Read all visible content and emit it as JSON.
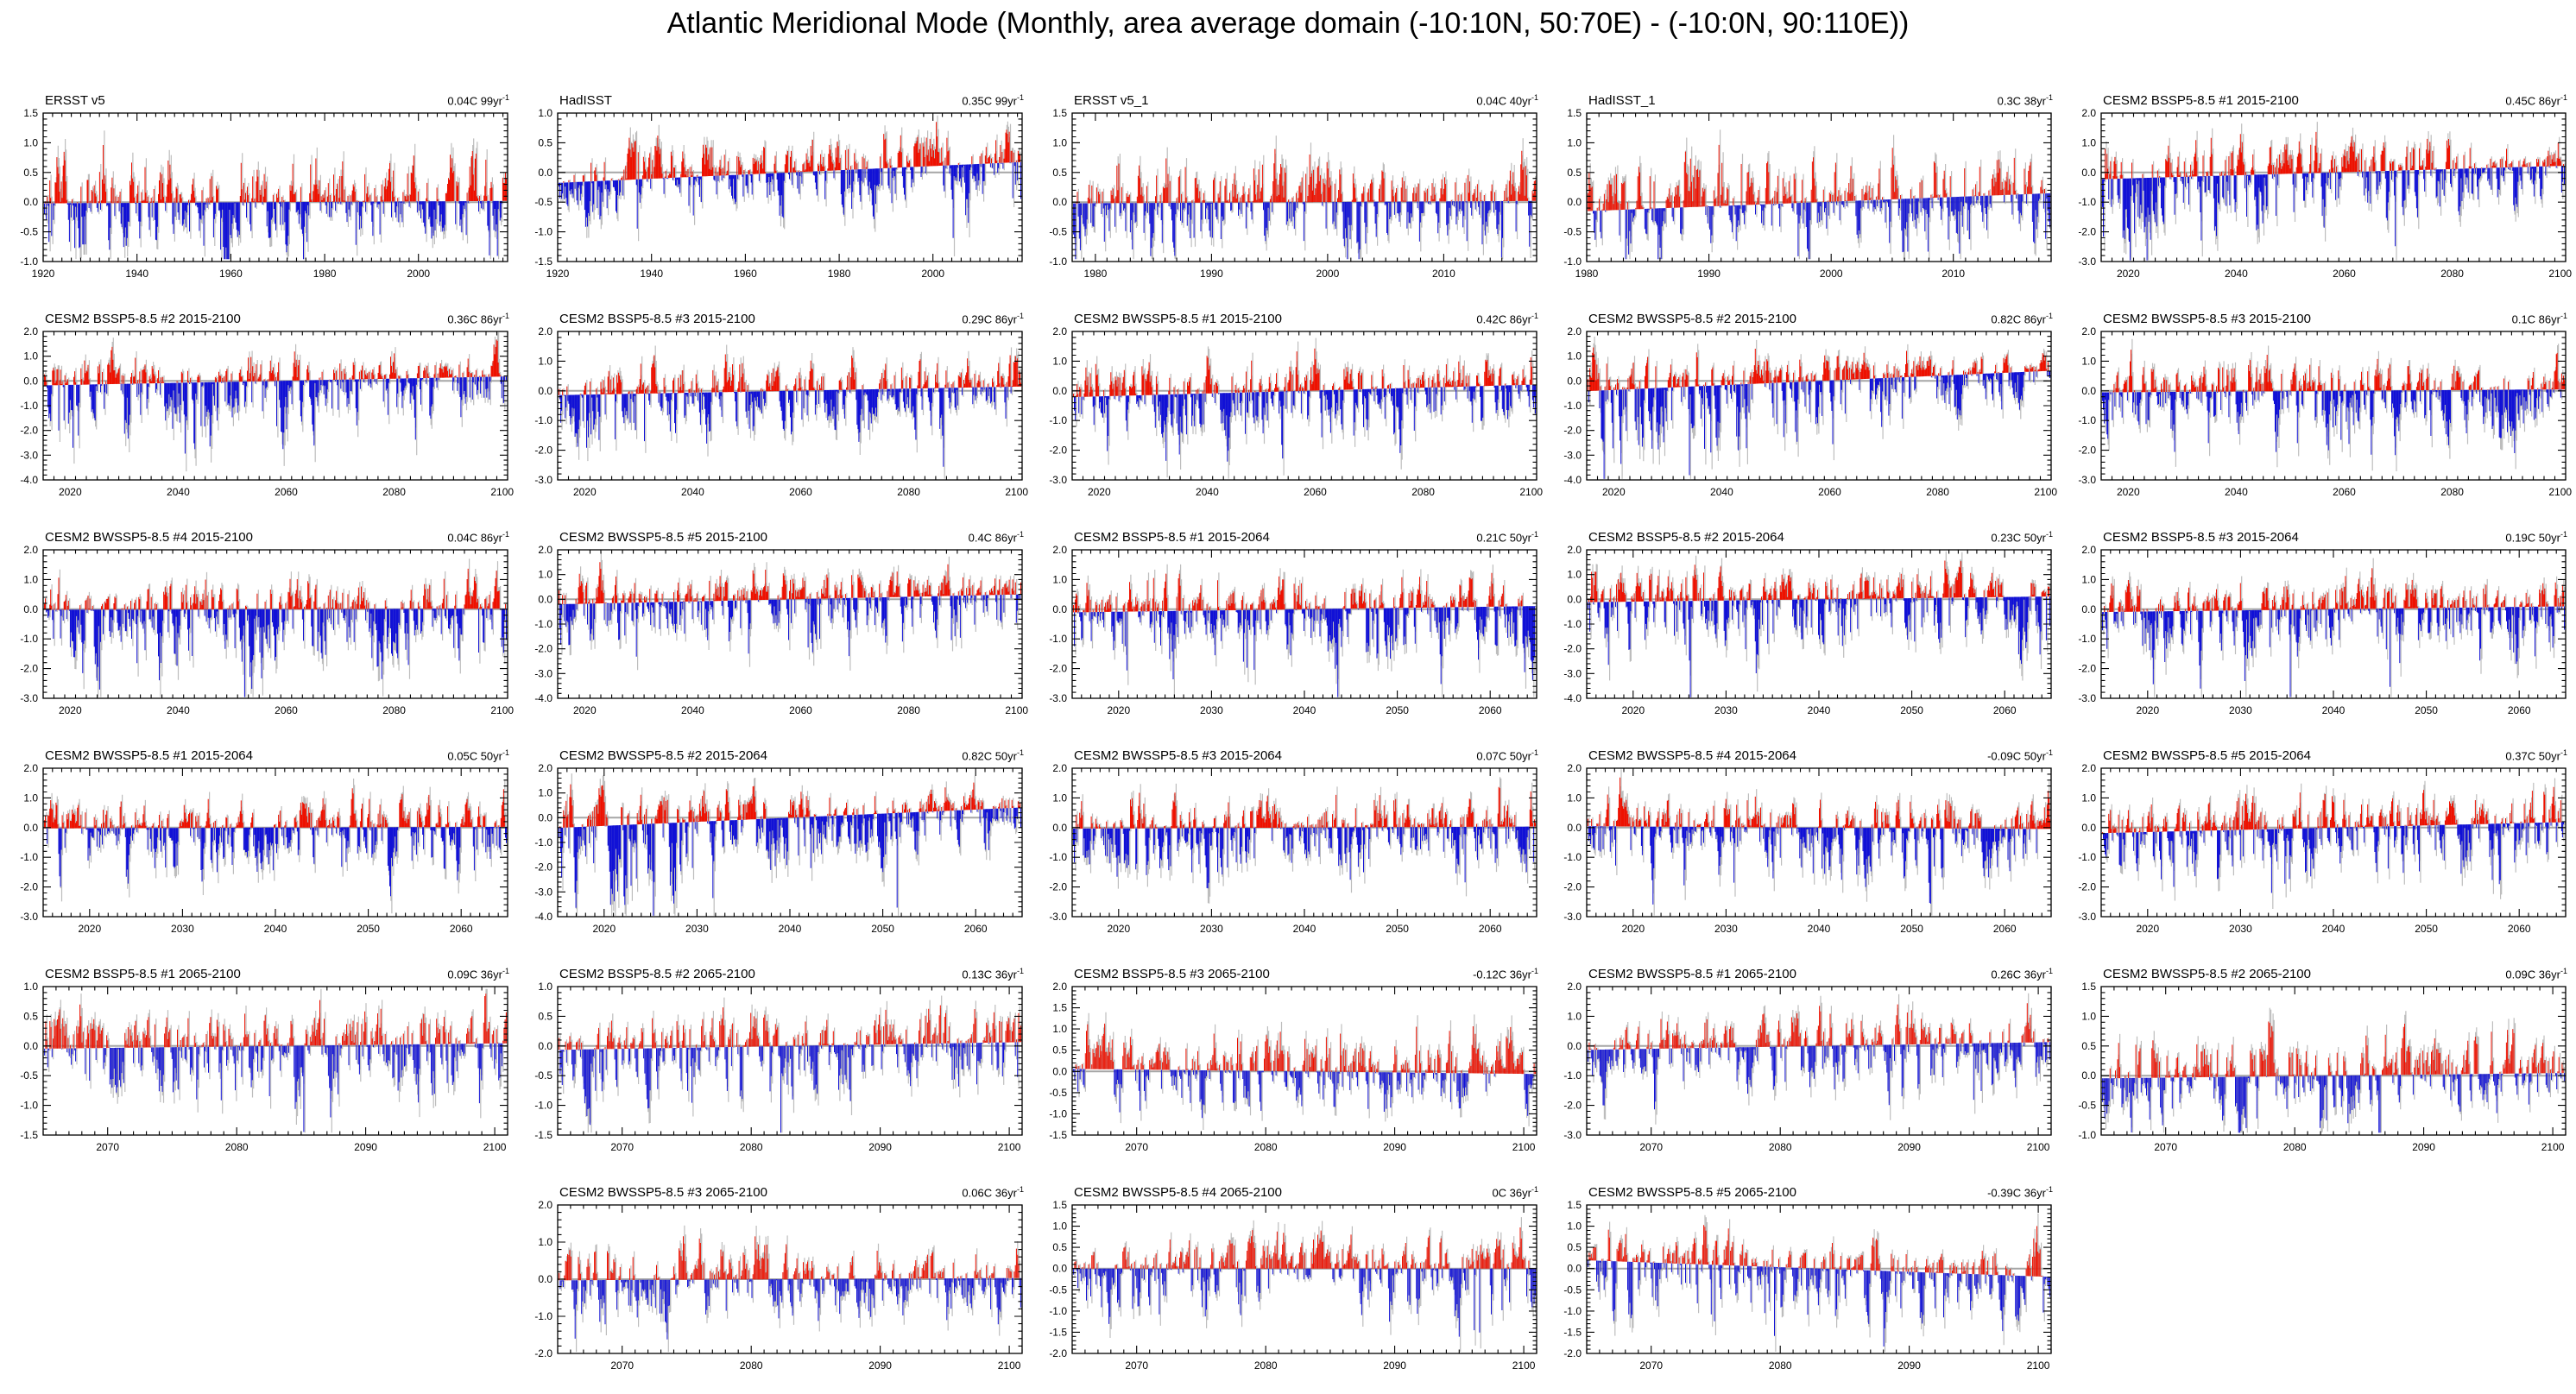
{
  "title": "Atlantic Meridional Mode (Monthly, area average domain (-10:10N, 50:70E) - (-10:0N, 90:110E))",
  "colors": {
    "positive_bar": "#ee1100",
    "negative_bar": "#1111d6",
    "shadow_bar": "#bdbdbd",
    "zero_line": "#a6a6a6",
    "frame": "#000000",
    "text": "#000000"
  },
  "chart_data": {
    "type": "bar",
    "description": "Grid of monthly anomaly bar charts; red bars above trend baseline, blue below, gray shadow series behind; zero reference line in gray.",
    "legend_position": "none",
    "grid": false,
    "panels": [
      {
        "title": "ERSST v5",
        "trend": "0.04C 99yr",
        "exp": "-1",
        "x0": 1920,
        "x1": 2019,
        "xticks": [
          1920,
          1940,
          1960,
          1980,
          2000
        ],
        "xminor": 2,
        "ytop": 1.5,
        "ybot": -1.0,
        "ystep": 0.5,
        "trend_c": 0.04,
        "render": {
          "seed": 3,
          "amp": 0.33,
          "neg": 1.15,
          "taper": [
            1,
            1
          ]
        }
      },
      {
        "title": "HadISST",
        "trend": "0.35C 99yr",
        "exp": "-1",
        "x0": 1920,
        "x1": 2019,
        "xticks": [
          1920,
          1940,
          1960,
          1980,
          2000
        ],
        "xminor": 2,
        "ytop": 1.0,
        "ybot": -1.5,
        "ystep": 0.5,
        "trend_c": 0.35,
        "render": {
          "seed": 17,
          "amp": 0.28,
          "neg": 1.35,
          "taper": [
            1,
            1
          ]
        }
      },
      {
        "title": "ERSST v5_1",
        "trend": "0.04C 40yr",
        "exp": "-1",
        "x0": 1978,
        "x1": 2018,
        "xticks": [
          1980,
          1990,
          2000,
          2010
        ],
        "xminor": 1,
        "ytop": 1.5,
        "ybot": -1.0,
        "ystep": 0.5,
        "trend_c": 0.04,
        "render": {
          "seed": 29,
          "amp": 0.36,
          "neg": 1.1,
          "taper": [
            1,
            1
          ]
        }
      },
      {
        "title": "HadISST_1",
        "trend": "0.3C 38yr",
        "exp": "-1",
        "x0": 1980,
        "x1": 2018,
        "xticks": [
          1980,
          1990,
          2000,
          2010
        ],
        "xminor": 1,
        "ytop": 1.5,
        "ybot": -1.0,
        "ystep": 0.5,
        "trend_c": 0.3,
        "render": {
          "seed": 41,
          "amp": 0.38,
          "neg": 1.0,
          "taper": [
            1,
            1
          ]
        }
      },
      {
        "title": "CESM2 BSSP5-8.5 #1 2015-2100",
        "trend": "0.45C 86yr",
        "exp": "-1",
        "x0": 2015,
        "x1": 2101,
        "xticks": [
          2020,
          2040,
          2060,
          2080,
          2100
        ],
        "xminor": 2,
        "ytop": 2.0,
        "ybot": -3.0,
        "ystep": 1.0,
        "trend_c": 0.45,
        "render": {
          "seed": 53,
          "amp": 0.5,
          "neg": 1.7,
          "taper": [
            1.25,
            0.8
          ]
        }
      },
      {
        "title": "CESM2 BSSP5-8.5 #2 2015-2100",
        "trend": "0.36C 86yr",
        "exp": "-1",
        "x0": 2015,
        "x1": 2101,
        "xticks": [
          2020,
          2040,
          2060,
          2080,
          2100
        ],
        "xminor": 2,
        "ytop": 2.0,
        "ybot": -4.0,
        "ystep": 1.0,
        "trend_c": 0.36,
        "render": {
          "seed": 67,
          "amp": 0.48,
          "neg": 2.0,
          "taper": [
            1.2,
            0.85
          ]
        }
      },
      {
        "title": "CESM2 BSSP5-8.5 #3 2015-2100",
        "trend": "0.29C 86yr",
        "exp": "-1",
        "x0": 2015,
        "x1": 2101,
        "xticks": [
          2020,
          2040,
          2060,
          2080,
          2100
        ],
        "xminor": 2,
        "ytop": 2.0,
        "ybot": -3.0,
        "ystep": 1.0,
        "trend_c": 0.29,
        "render": {
          "seed": 79,
          "amp": 0.45,
          "neg": 1.6,
          "taper": [
            1,
            1
          ]
        }
      },
      {
        "title": "CESM2 BWSSP5-8.5 #1 2015-2100",
        "trend": "0.42C 86yr",
        "exp": "-1",
        "x0": 2015,
        "x1": 2101,
        "xticks": [
          2020,
          2040,
          2060,
          2080,
          2100
        ],
        "xminor": 2,
        "ytop": 2.0,
        "ybot": -3.0,
        "ystep": 1.0,
        "trend_c": 0.42,
        "render": {
          "seed": 97,
          "amp": 0.5,
          "neg": 1.6,
          "taper": [
            1.2,
            0.8
          ]
        }
      },
      {
        "title": "CESM2 BWSSP5-8.5 #2 2015-2100",
        "trend": "0.82C 86yr",
        "exp": "-1",
        "x0": 2015,
        "x1": 2101,
        "xticks": [
          2020,
          2040,
          2060,
          2080,
          2100
        ],
        "xminor": 2,
        "ytop": 2.0,
        "ybot": -4.0,
        "ystep": 1.0,
        "trend_c": 0.82,
        "render": {
          "seed": 113,
          "amp": 0.5,
          "neg": 2.0,
          "taper": [
            1.5,
            0.6
          ]
        }
      },
      {
        "title": "CESM2 BWSSP5-8.5 #3 2015-2100",
        "trend": "0.1C 86yr",
        "exp": "-1",
        "x0": 2015,
        "x1": 2101,
        "xticks": [
          2020,
          2040,
          2060,
          2080,
          2100
        ],
        "xminor": 2,
        "ytop": 2.0,
        "ybot": -3.0,
        "ystep": 1.0,
        "trend_c": 0.1,
        "render": {
          "seed": 131,
          "amp": 0.48,
          "neg": 1.7,
          "taper": [
            1,
            1
          ]
        }
      },
      {
        "title": "CESM2 BWSSP5-8.5 #4 2015-2100",
        "trend": "0.04C 86yr",
        "exp": "-1",
        "x0": 2015,
        "x1": 2101,
        "xticks": [
          2020,
          2040,
          2060,
          2080,
          2100
        ],
        "xminor": 2,
        "ytop": 2.0,
        "ybot": -3.0,
        "ystep": 1.0,
        "trend_c": 0.04,
        "render": {
          "seed": 149,
          "amp": 0.48,
          "neg": 1.8,
          "taper": [
            1,
            1
          ]
        }
      },
      {
        "title": "CESM2 BWSSP5-8.5 #5 2015-2100",
        "trend": "0.4C 86yr",
        "exp": "-1",
        "x0": 2015,
        "x1": 2101,
        "xticks": [
          2020,
          2040,
          2060,
          2080,
          2100
        ],
        "xminor": 2,
        "ytop": 2.0,
        "ybot": -4.0,
        "ystep": 1.0,
        "trend_c": 0.4,
        "render": {
          "seed": 167,
          "amp": 0.5,
          "neg": 1.9,
          "taper": [
            1,
            1
          ]
        }
      },
      {
        "title": "CESM2 BSSP5-8.5 #1 2015-2064",
        "trend": "0.21C 50yr",
        "exp": "-1",
        "x0": 2015,
        "x1": 2065,
        "xticks": [
          2020,
          2030,
          2040,
          2050,
          2060
        ],
        "xminor": 1,
        "ytop": 2.0,
        "ybot": -3.0,
        "ystep": 1.0,
        "trend_c": 0.21,
        "render": {
          "seed": 181,
          "amp": 0.5,
          "neg": 1.6,
          "taper": [
            1,
            1
          ]
        }
      },
      {
        "title": "CESM2 BSSP5-8.5 #2 2015-2064",
        "trend": "0.23C 50yr",
        "exp": "-1",
        "x0": 2015,
        "x1": 2065,
        "xticks": [
          2020,
          2030,
          2040,
          2050,
          2060
        ],
        "xminor": 1,
        "ytop": 2.0,
        "ybot": -4.0,
        "ystep": 1.0,
        "trend_c": 0.23,
        "render": {
          "seed": 197,
          "amp": 0.52,
          "neg": 1.9,
          "taper": [
            1,
            1
          ]
        }
      },
      {
        "title": "CESM2 BSSP5-8.5 #3 2015-2064",
        "trend": "0.19C 50yr",
        "exp": "-1",
        "x0": 2015,
        "x1": 2065,
        "xticks": [
          2020,
          2030,
          2040,
          2050,
          2060
        ],
        "xminor": 1,
        "ytop": 2.0,
        "ybot": -3.0,
        "ystep": 1.0,
        "trend_c": 0.19,
        "render": {
          "seed": 211,
          "amp": 0.5,
          "neg": 1.7,
          "taper": [
            1,
            1
          ]
        }
      },
      {
        "title": "CESM2 BWSSP5-8.5 #1 2015-2064",
        "trend": "0.05C 50yr",
        "exp": "-1",
        "x0": 2015,
        "x1": 2065,
        "xticks": [
          2020,
          2030,
          2040,
          2050,
          2060
        ],
        "xminor": 1,
        "ytop": 2.0,
        "ybot": -3.0,
        "ystep": 1.0,
        "trend_c": 0.05,
        "render": {
          "seed": 229,
          "amp": 0.48,
          "neg": 1.6,
          "taper": [
            1,
            1
          ]
        }
      },
      {
        "title": "CESM2 BWSSP5-8.5 #2 2015-2064",
        "trend": "0.82C 50yr",
        "exp": "-1",
        "x0": 2015,
        "x1": 2065,
        "xticks": [
          2020,
          2030,
          2040,
          2050,
          2060
        ],
        "xminor": 1,
        "ytop": 2.0,
        "ybot": -4.0,
        "ystep": 1.0,
        "trend_c": 0.82,
        "render": {
          "seed": 241,
          "amp": 0.52,
          "neg": 2.0,
          "taper": [
            1.5,
            0.6
          ]
        }
      },
      {
        "title": "CESM2 BWSSP5-8.5 #3 2015-2064",
        "trend": "0.07C 50yr",
        "exp": "-1",
        "x0": 2015,
        "x1": 2065,
        "xticks": [
          2020,
          2030,
          2040,
          2050,
          2060
        ],
        "xminor": 1,
        "ytop": 2.0,
        "ybot": -3.0,
        "ystep": 1.0,
        "trend_c": 0.07,
        "render": {
          "seed": 257,
          "amp": 0.5,
          "neg": 1.6,
          "taper": [
            1,
            1
          ]
        }
      },
      {
        "title": "CESM2 BWSSP5-8.5 #4 2015-2064",
        "trend": "-0.09C 50yr",
        "exp": "-1",
        "x0": 2015,
        "x1": 2065,
        "xticks": [
          2020,
          2030,
          2040,
          2050,
          2060
        ],
        "xminor": 1,
        "ytop": 2.0,
        "ybot": -3.0,
        "ystep": 1.0,
        "trend_c": -0.09,
        "render": {
          "seed": 271,
          "amp": 0.48,
          "neg": 1.6,
          "taper": [
            1,
            1
          ]
        }
      },
      {
        "title": "CESM2 BWSSP5-8.5 #5 2015-2064",
        "trend": "0.37C 50yr",
        "exp": "-1",
        "x0": 2015,
        "x1": 2065,
        "xticks": [
          2020,
          2030,
          2040,
          2050,
          2060
        ],
        "xminor": 1,
        "ytop": 2.0,
        "ybot": -3.0,
        "ystep": 1.0,
        "trend_c": 0.37,
        "render": {
          "seed": 283,
          "amp": 0.5,
          "neg": 1.7,
          "taper": [
            1,
            1
          ]
        }
      },
      {
        "title": "CESM2 BSSP5-8.5 #1 2065-2100",
        "trend": "0.09C 36yr",
        "exp": "-1",
        "x0": 2065,
        "x1": 2101,
        "xticks": [
          2070,
          2080,
          2090,
          2100
        ],
        "xminor": 1,
        "ytop": 1.0,
        "ybot": -1.5,
        "ystep": 0.5,
        "trend_c": 0.09,
        "render": {
          "seed": 307,
          "amp": 0.3,
          "neg": 1.4,
          "taper": [
            1,
            1
          ]
        }
      },
      {
        "title": "CESM2 BSSP5-8.5 #2 2065-2100",
        "trend": "0.13C 36yr",
        "exp": "-1",
        "x0": 2065,
        "x1": 2101,
        "xticks": [
          2070,
          2080,
          2090,
          2100
        ],
        "xminor": 1,
        "ytop": 1.0,
        "ybot": -1.5,
        "ystep": 0.5,
        "trend_c": 0.13,
        "render": {
          "seed": 331,
          "amp": 0.3,
          "neg": 1.4,
          "taper": [
            1,
            1
          ]
        }
      },
      {
        "title": "CESM2 BSSP5-8.5 #3 2065-2100",
        "trend": "-0.12C 36yr",
        "exp": "-1",
        "x0": 2065,
        "x1": 2101,
        "xticks": [
          2070,
          2080,
          2090,
          2100
        ],
        "xminor": 1,
        "ytop": 2.0,
        "ybot": -1.5,
        "ystep": 0.5,
        "trend_c": -0.12,
        "render": {
          "seed": 353,
          "amp": 0.42,
          "neg": 1.1,
          "taper": [
            1,
            1
          ]
        }
      },
      {
        "title": "CESM2 BWSSP5-8.5 #1 2065-2100",
        "trend": "0.26C 36yr",
        "exp": "-1",
        "x0": 2065,
        "x1": 2101,
        "xticks": [
          2070,
          2080,
          2090,
          2100
        ],
        "xminor": 1,
        "ytop": 2.0,
        "ybot": -3.0,
        "ystep": 1.0,
        "trend_c": 0.26,
        "render": {
          "seed": 379,
          "amp": 0.5,
          "neg": 1.5,
          "taper": [
            1,
            1
          ]
        }
      },
      {
        "title": "CESM2 BWSSP5-8.5 #2 2065-2100",
        "trend": "0.09C 36yr",
        "exp": "-1",
        "x0": 2065,
        "x1": 2101,
        "xticks": [
          2070,
          2080,
          2090,
          2100
        ],
        "xminor": 1,
        "ytop": 1.5,
        "ybot": -1.0,
        "ystep": 0.5,
        "trend_c": 0.09,
        "render": {
          "seed": 397,
          "amp": 0.35,
          "neg": 1.0,
          "taper": [
            1,
            1
          ]
        }
      },
      {
        "title": "CESM2 BWSSP5-8.5 #3 2065-2100",
        "trend": "0.06C 36yr",
        "exp": "-1",
        "x0": 2065,
        "x1": 2101,
        "xticks": [
          2070,
          2080,
          2090,
          2100
        ],
        "xminor": 1,
        "ytop": 2.0,
        "ybot": -2.0,
        "ystep": 1.0,
        "trend_c": 0.06,
        "render": {
          "seed": 419,
          "amp": 0.45,
          "neg": 1.25,
          "taper": [
            1,
            1
          ]
        }
      },
      {
        "title": "CESM2 BWSSP5-8.5 #4 2065-2100",
        "trend": "0C 36yr",
        "exp": "-1",
        "x0": 2065,
        "x1": 2101,
        "xticks": [
          2070,
          2080,
          2090,
          2100
        ],
        "xminor": 1,
        "ytop": 1.5,
        "ybot": -2.0,
        "ystep": 0.5,
        "trend_c": 0.0,
        "render": {
          "seed": 443,
          "amp": 0.33,
          "neg": 1.6,
          "taper": [
            1,
            1
          ]
        }
      },
      {
        "title": "CESM2 BWSSP5-8.5 #5 2065-2100",
        "trend": "-0.39C 36yr",
        "exp": "-1",
        "x0": 2065,
        "x1": 2101,
        "xticks": [
          2070,
          2080,
          2090,
          2100
        ],
        "xminor": 1,
        "ytop": 1.5,
        "ybot": -2.0,
        "ystep": 0.5,
        "trend_c": -0.39,
        "render": {
          "seed": 467,
          "amp": 0.36,
          "neg": 1.5,
          "taper": [
            1,
            1
          ]
        }
      }
    ]
  }
}
